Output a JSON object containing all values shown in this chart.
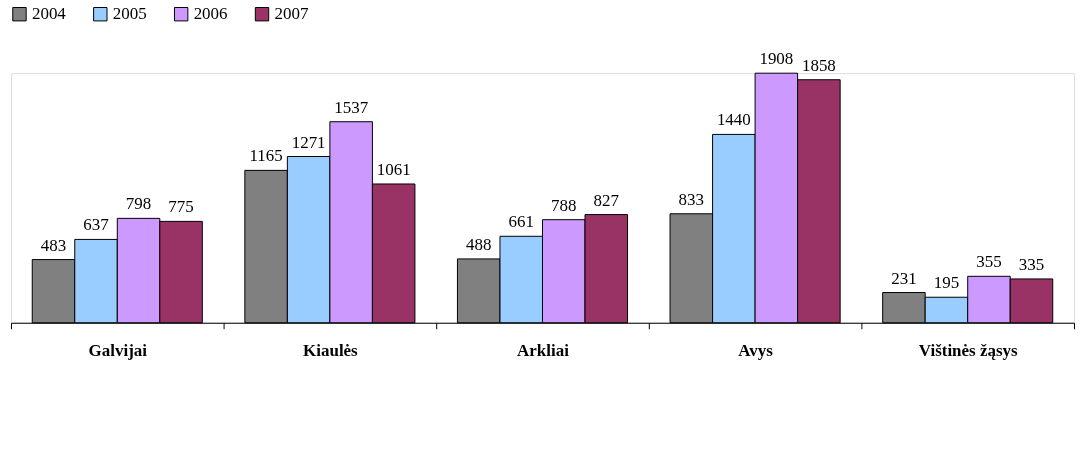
{
  "chart_data": {
    "type": "bar",
    "categories": [
      "Galvijai",
      "Kiaulės",
      "Arkliai",
      "Avys",
      "Vištinės žąsys"
    ],
    "series": [
      {
        "name": "2004",
        "color": "#808080",
        "values": [
          483,
          1165,
          488,
          833,
          231
        ]
      },
      {
        "name": "2005",
        "color": "#99ccff",
        "values": [
          637,
          1271,
          661,
          1440,
          195
        ]
      },
      {
        "name": "2006",
        "color": "#cc99ff",
        "values": [
          798,
          1537,
          788,
          1908,
          355
        ]
      },
      {
        "name": "2007",
        "color": "#993366",
        "values": [
          775,
          1061,
          827,
          1858,
          335
        ]
      }
    ],
    "data_labels": true,
    "legend": "top",
    "grid": false
  }
}
